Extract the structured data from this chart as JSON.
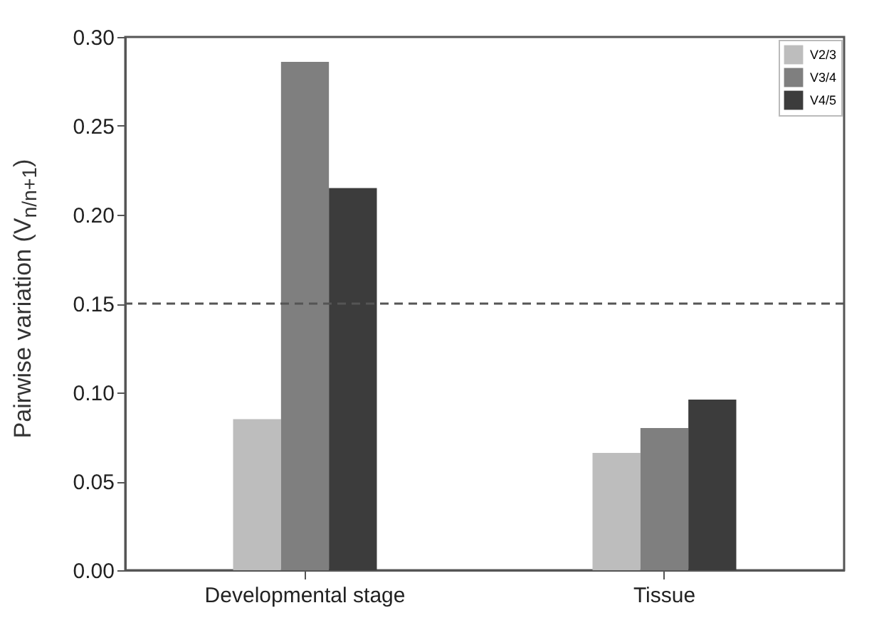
{
  "chart_data": {
    "type": "bar",
    "ylabel": "Pairwise variation (V$_{n/n+1}$)",
    "categories": [
      "Developmental stage",
      "Tissue"
    ],
    "series": [
      {
        "name": "V2/3",
        "color": "#bdbdbd",
        "values": [
          0.085,
          0.066
        ]
      },
      {
        "name": "V3/4",
        "color": "#7f7f7f",
        "values": [
          0.286,
          0.08
        ]
      },
      {
        "name": "V4/5",
        "color": "#3c3c3c",
        "values": [
          0.215,
          0.096
        ]
      }
    ],
    "ylim": [
      0,
      0.3
    ],
    "yticks": [
      {
        "value": 0,
        "label": "0.00"
      },
      {
        "value": 0.05,
        "label": "0.05"
      },
      {
        "value": 0.1,
        "label": "0.10"
      },
      {
        "value": 0.15,
        "label": "0.15"
      },
      {
        "value": 0.2,
        "label": "0.20"
      },
      {
        "value": 0.25,
        "label": "0.25"
      },
      {
        "value": 0.3,
        "label": "0.30"
      }
    ],
    "ref_lines": [
      {
        "axis": "y",
        "value": 0.15,
        "color": "#555555",
        "line_style": "dashed"
      }
    ],
    "legend": "top right",
    "grid": false
  }
}
